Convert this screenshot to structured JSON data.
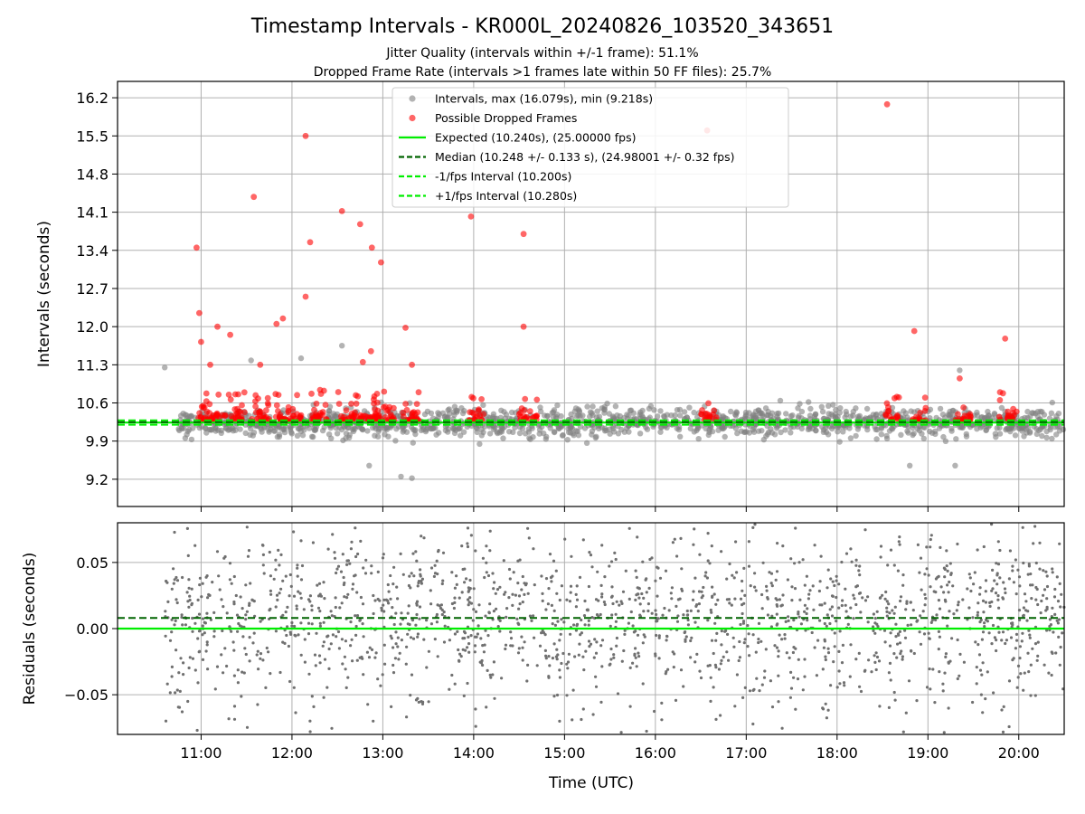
{
  "chart_data": {
    "type": "scatter",
    "title": "Timestamp Intervals - KR000L_20240826_103520_343651",
    "subtitle_lines": [
      "Jitter Quality (intervals within +/-1 frame): 51.1%",
      "Dropped Frame Rate (intervals >1 frames late within 50 FF files): 25.7%"
    ],
    "xlabel": "Time (UTC)",
    "x_ticks": [
      "11:00",
      "12:00",
      "13:00",
      "14:00",
      "15:00",
      "16:00",
      "17:00",
      "18:00",
      "19:00",
      "20:00"
    ],
    "x_range_hours": [
      10.08,
      20.5
    ],
    "grid": true,
    "top_panel": {
      "ylabel": "Intervals (seconds)",
      "ylim": [
        8.7,
        16.5
      ],
      "y_ticks": [
        "9.2",
        "9.9",
        "10.6",
        "11.3",
        "12.0",
        "12.7",
        "13.4",
        "14.1",
        "14.8",
        "15.5",
        "16.2"
      ],
      "expected_interval": 10.24,
      "median_interval": 10.248,
      "lower_interval": 10.2,
      "upper_interval": 10.28,
      "legend_placement": "upper-center",
      "legend": [
        {
          "label": "Intervals, max (16.079s), min (9.218s)",
          "kind": "marker",
          "color": "#808080"
        },
        {
          "label": "Possible Dropped Frames",
          "kind": "marker",
          "color": "#ff0000"
        },
        {
          "label": "Expected (10.240s), (25.00000 fps)",
          "kind": "solid",
          "color": "#00ee00"
        },
        {
          "label": "Median (10.248 +/- 0.133 s), (24.98001 +/- 0.32 fps)",
          "kind": "dashed",
          "color": "#006400"
        },
        {
          "label": "-1/fps Interval (10.200s)",
          "kind": "dashed",
          "color": "#00ee00"
        },
        {
          "label": "+1/fps Interval (10.280s)",
          "kind": "dashed",
          "color": "#00ee00"
        }
      ],
      "dropped_outliers": [
        {
          "time_h": 10.95,
          "interval": 13.45
        },
        {
          "time_h": 10.98,
          "interval": 12.25
        },
        {
          "time_h": 11.0,
          "interval": 11.72
        },
        {
          "time_h": 11.1,
          "interval": 11.3
        },
        {
          "time_h": 11.18,
          "interval": 12.0
        },
        {
          "time_h": 11.32,
          "interval": 11.85
        },
        {
          "time_h": 11.58,
          "interval": 14.38
        },
        {
          "time_h": 11.65,
          "interval": 11.3
        },
        {
          "time_h": 11.83,
          "interval": 12.05
        },
        {
          "time_h": 11.9,
          "interval": 12.15
        },
        {
          "time_h": 12.15,
          "interval": 15.5
        },
        {
          "time_h": 12.15,
          "interval": 12.55
        },
        {
          "time_h": 12.2,
          "interval": 13.55
        },
        {
          "time_h": 12.55,
          "interval": 14.12
        },
        {
          "time_h": 12.75,
          "interval": 13.88
        },
        {
          "time_h": 12.78,
          "interval": 11.35
        },
        {
          "time_h": 12.88,
          "interval": 13.45
        },
        {
          "time_h": 12.87,
          "interval": 11.55
        },
        {
          "time_h": 12.98,
          "interval": 13.18
        },
        {
          "time_h": 13.25,
          "interval": 11.98
        },
        {
          "time_h": 13.32,
          "interval": 11.3
        },
        {
          "time_h": 13.97,
          "interval": 14.02
        },
        {
          "time_h": 14.55,
          "interval": 13.7
        },
        {
          "time_h": 14.55,
          "interval": 12.0
        },
        {
          "time_h": 16.57,
          "interval": 15.6
        },
        {
          "time_h": 18.55,
          "interval": 16.08
        },
        {
          "time_h": 18.85,
          "interval": 11.92
        },
        {
          "time_h": 19.35,
          "interval": 11.05
        },
        {
          "time_h": 19.85,
          "interval": 11.78
        }
      ],
      "interval_outliers": [
        {
          "time_h": 10.6,
          "interval": 11.25
        },
        {
          "time_h": 11.55,
          "interval": 11.38
        },
        {
          "time_h": 12.1,
          "interval": 11.42
        },
        {
          "time_h": 12.55,
          "interval": 11.65
        },
        {
          "time_h": 13.2,
          "interval": 9.25
        },
        {
          "time_h": 13.32,
          "interval": 9.22
        },
        {
          "time_h": 12.85,
          "interval": 9.45
        },
        {
          "time_h": 18.8,
          "interval": 9.45
        },
        {
          "time_h": 19.35,
          "interval": 11.2
        },
        {
          "time_h": 19.3,
          "interval": 9.45
        }
      ]
    },
    "bottom_panel": {
      "ylabel": "Residuals (seconds)",
      "ylim": [
        -0.08,
        0.08
      ],
      "y_ticks": [
        "0.05",
        "0.00",
        "−0.05"
      ],
      "zero_line": 0.0,
      "median_residual": 0.008
    }
  }
}
